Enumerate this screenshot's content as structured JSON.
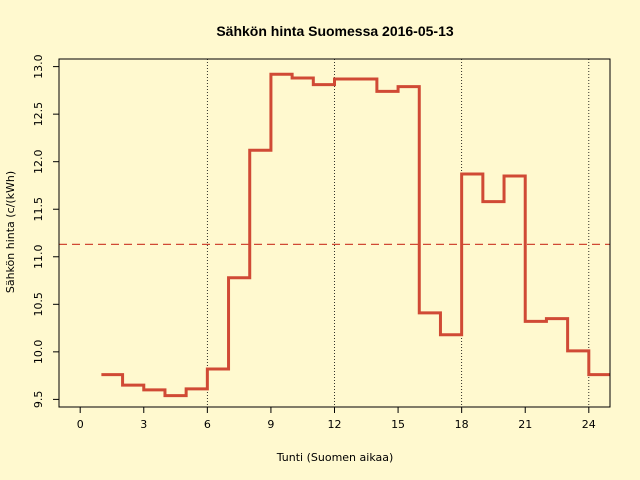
{
  "chart_data": {
    "type": "line",
    "title": "Sähkön hinta Suomessa 2016-05-13",
    "xlabel": "Tunti (Suomen aikaa)",
    "ylabel": "Sähkön hinta (c/(kWh)",
    "xlim": [
      -1,
      25
    ],
    "ylim": [
      9.42,
      13.08
    ],
    "xticks": [
      0,
      3,
      6,
      9,
      12,
      15,
      18,
      21,
      24
    ],
    "yticks": [
      9.5,
      10.0,
      10.5,
      11.0,
      11.5,
      12.0,
      12.5,
      13.0
    ],
    "ytick_labels": [
      "9.5",
      "10.0",
      "10.5",
      "11.0",
      "11.5",
      "12.0",
      "12.5",
      "13.0"
    ],
    "vlines": [
      6,
      12,
      18,
      24
    ],
    "hline": 11.13,
    "step": "post",
    "series": [
      {
        "x": [
          1,
          2,
          3,
          4,
          5,
          6,
          7,
          8,
          9,
          10,
          11,
          12,
          13,
          14,
          15,
          16,
          17,
          18,
          19,
          20,
          21,
          22,
          23,
          24,
          25
        ],
        "values": [
          9.76,
          9.65,
          9.6,
          9.54,
          9.61,
          9.82,
          10.78,
          12.12,
          12.92,
          12.88,
          12.81,
          12.87,
          12.87,
          12.74,
          12.79,
          10.41,
          10.18,
          11.87,
          11.58,
          11.85,
          10.32,
          10.35,
          10.01,
          9.76,
          9.76
        ]
      }
    ],
    "colors": {
      "line": "#d04a35",
      "hline": "#d04a35",
      "vlines": "#000000",
      "background": "#fff9cf"
    }
  }
}
